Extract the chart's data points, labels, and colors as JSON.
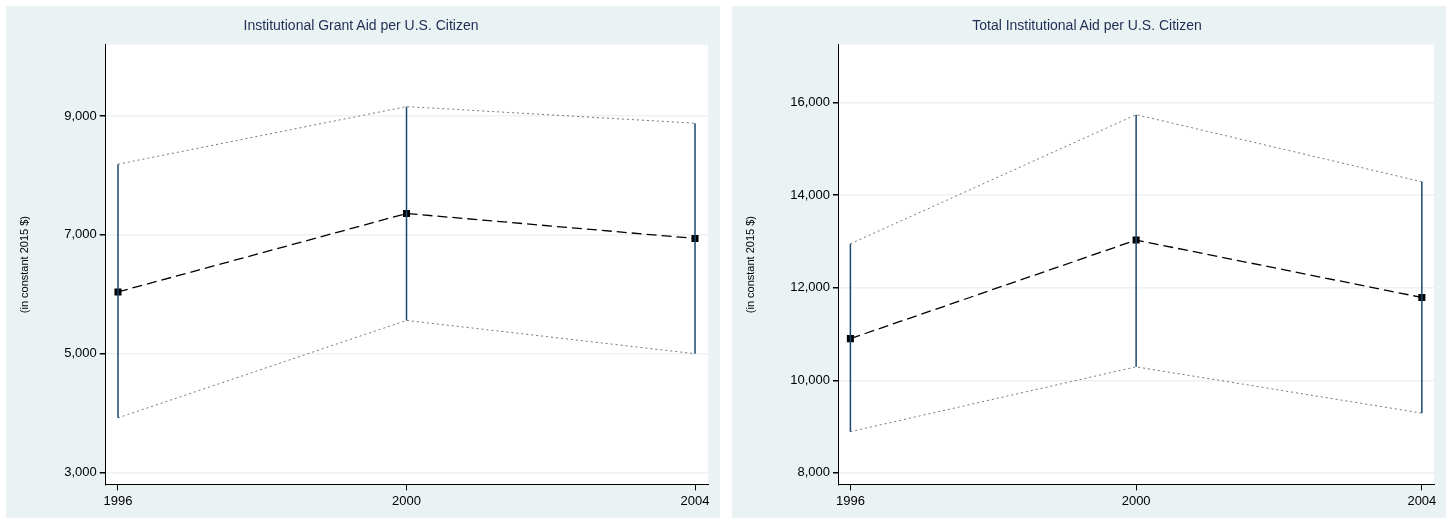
{
  "chart_data": [
    {
      "type": "line",
      "title": "Institutional Grant Aid per U.S. Citizen",
      "ylabel": "(in constant 2015 $)",
      "x": [
        1996,
        2000,
        2004
      ],
      "series": [
        {
          "color": "#000000",
          "values": [
            6040,
            7360,
            6940
          ],
          "errors": [
            [
              3920,
              8190
            ],
            [
              5560,
              9160
            ],
            [
              5000,
              8880
            ]
          ]
        },
        {
          "color": "#777777",
          "values": [
            8190,
            9160,
            8880
          ],
          "line_style": "dotted",
          "marker": "none"
        },
        {
          "color": "#777777",
          "values": [
            3920,
            5560,
            5000
          ],
          "line_style": "dotted",
          "marker": "none"
        }
      ],
      "xlim": [
        1995.83,
        2004.18
      ],
      "xticks": [
        1996,
        2000,
        2004
      ],
      "ylim": [
        2800,
        10200
      ],
      "yticks": [
        {
          "value": 3000,
          "label": "3,000"
        },
        {
          "value": 5000,
          "label": "5,000"
        },
        {
          "value": 7000,
          "label": "7,000"
        },
        {
          "value": 9000,
          "label": "9,000"
        }
      ],
      "grid": "y",
      "legend": false,
      "marker": "square",
      "line_style": "dashed"
    },
    {
      "type": "line",
      "title": "Total Institutional Aid per U.S. Citizen",
      "ylabel": "(in constant 2015 $)",
      "x": [
        1996,
        2000,
        2004
      ],
      "series": [
        {
          "color": "#000000",
          "values": [
            10900,
            13030,
            11790
          ],
          "errors": [
            [
              8890,
              12950
            ],
            [
              10290,
              15740
            ],
            [
              9290,
              14290
            ]
          ]
        },
        {
          "color": "#777777",
          "values": [
            12950,
            15740,
            14290
          ],
          "line_style": "dotted",
          "marker": "none"
        },
        {
          "color": "#777777",
          "values": [
            8890,
            10290,
            9290
          ],
          "line_style": "dotted",
          "marker": "none"
        }
      ],
      "xlim": [
        1995.84,
        2004.17
      ],
      "xticks": [
        1996,
        2000,
        2004
      ],
      "ylim": [
        7750,
        17250
      ],
      "yticks": [
        {
          "value": 8000,
          "label": "8,000"
        },
        {
          "value": 10000,
          "label": "10,000"
        },
        {
          "value": 12000,
          "label": "12,000"
        },
        {
          "value": 14000,
          "label": "14,000"
        },
        {
          "value": 16000,
          "label": "16,000"
        }
      ],
      "grid": "y",
      "legend": false,
      "marker": "square",
      "line_style": "dashed"
    }
  ]
}
